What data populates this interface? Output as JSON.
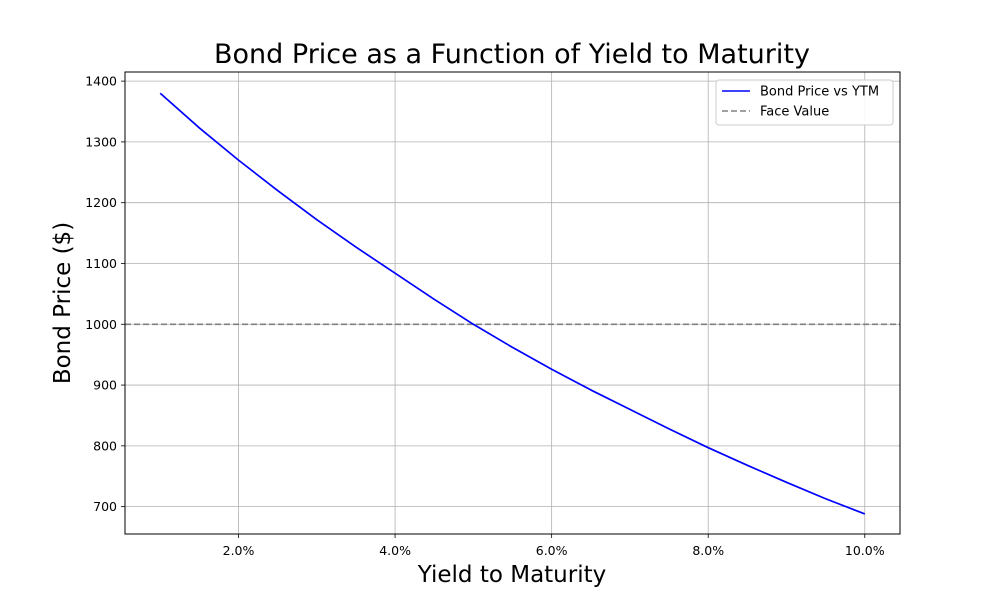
{
  "chart_data": {
    "type": "line",
    "title": "Bond Price as a Function of Yield to Maturity",
    "xlabel": "Yield to Maturity",
    "ylabel": "Bond Price ($)",
    "xlim": [
      0.55,
      10.45
    ],
    "ylim": [
      655,
      1415
    ],
    "x_ticks": [
      2,
      4,
      6,
      8,
      10
    ],
    "x_tick_labels": [
      "2.0%",
      "4.0%",
      "6.0%",
      "8.0%",
      "10.0%"
    ],
    "y_ticks": [
      700,
      800,
      900,
      1000,
      1100,
      1200,
      1300,
      1400
    ],
    "y_tick_labels": [
      "700",
      "800",
      "900",
      "1000",
      "1100",
      "1200",
      "1300",
      "1400"
    ],
    "grid": true,
    "legend_position": "top-right",
    "series": [
      {
        "name": "Bond Price vs YTM",
        "style": "solid",
        "color": "#0000ff",
        "x": [
          1.0,
          1.5,
          2.0,
          2.5,
          3.0,
          3.5,
          4.0,
          4.5,
          5.0,
          5.5,
          6.0,
          6.5,
          7.0,
          7.5,
          8.0,
          8.5,
          9.0,
          9.5,
          10.0
        ],
        "y": [
          1380,
          1323,
          1270,
          1220,
          1172,
          1127,
          1084,
          1041,
          1000,
          962,
          926,
          892,
          860,
          828,
          797,
          768,
          740,
          713,
          688
        ]
      },
      {
        "name": "Face Value",
        "style": "dashed",
        "color": "#808080",
        "y_const": 1000
      }
    ]
  }
}
